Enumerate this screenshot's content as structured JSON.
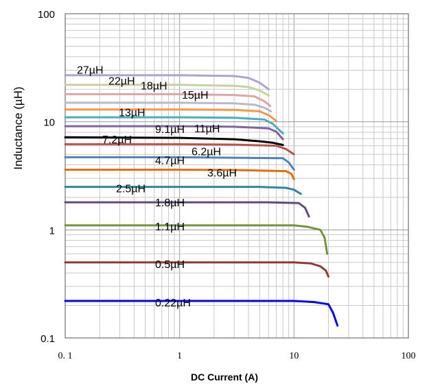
{
  "chart_data": {
    "type": "line",
    "xlabel": "DC Current (A)",
    "ylabel": "Inductance (µH)",
    "xscale": "log",
    "yscale": "log",
    "xlim": [
      0.1,
      100
    ],
    "ylim": [
      0.1,
      100
    ],
    "grid": true,
    "x_ticks": [
      {
        "value": 0.1,
        "label": "0. 1"
      },
      {
        "value": 1,
        "label": "1"
      },
      {
        "value": 10,
        "label": "10"
      },
      {
        "value": 100,
        "label": "100"
      }
    ],
    "y_ticks": [
      {
        "value": 0.1,
        "label": "0.1"
      },
      {
        "value": 1,
        "label": "1"
      },
      {
        "value": 10,
        "label": "10"
      },
      {
        "value": 100,
        "label": "100"
      }
    ],
    "series": [
      {
        "name": "27µH",
        "color": "#b0a3c8",
        "points": [
          [
            0.1,
            27
          ],
          [
            1,
            27
          ],
          [
            3,
            26.5
          ],
          [
            4,
            25.5
          ],
          [
            5,
            23
          ],
          [
            6,
            20
          ]
        ]
      },
      {
        "name": "22µH",
        "color": "#c3d59d",
        "points": [
          [
            0.1,
            22
          ],
          [
            1,
            22
          ],
          [
            3,
            21.5
          ],
          [
            4,
            21
          ],
          [
            5,
            19.5
          ],
          [
            6,
            17.5
          ]
        ]
      },
      {
        "name": "18µH",
        "color": "#dba6a3",
        "points": [
          [
            0.1,
            18
          ],
          [
            1,
            18
          ],
          [
            3,
            17.7
          ],
          [
            4.5,
            17.2
          ],
          [
            5.5,
            15.5
          ],
          [
            6.2,
            14
          ]
        ]
      },
      {
        "name": "15µH",
        "color": "#b8b8d4",
        "points": [
          [
            0.1,
            15
          ],
          [
            1,
            15
          ],
          [
            3,
            14.8
          ],
          [
            4.5,
            14.4
          ],
          [
            5.5,
            13.5
          ],
          [
            6.3,
            12.5
          ]
        ]
      },
      {
        "name": "13µH",
        "color": "#f79646",
        "points": [
          [
            0.1,
            13
          ],
          [
            1,
            13
          ],
          [
            3,
            12.9
          ],
          [
            5,
            12.5
          ],
          [
            6,
            11.5
          ],
          [
            7,
            10.2
          ]
        ]
      },
      {
        "name": "11µH",
        "color": "#4bacc6",
        "points": [
          [
            0.1,
            11
          ],
          [
            1,
            11
          ],
          [
            3,
            10.9
          ],
          [
            5.5,
            10.5
          ],
          [
            6.5,
            9.6
          ],
          [
            8,
            7.8
          ]
        ]
      },
      {
        "name": "9.1µH",
        "color": "#8064a2",
        "points": [
          [
            0.1,
            9.1
          ],
          [
            1,
            9.1
          ],
          [
            3,
            9
          ],
          [
            6,
            8.7
          ],
          [
            7,
            8.1
          ],
          [
            8,
            6.9
          ]
        ]
      },
      {
        "name": "7.2µH",
        "color": "#000000",
        "points": [
          [
            0.1,
            7.2
          ],
          [
            1,
            7.1
          ],
          [
            3,
            6.9
          ],
          [
            5,
            6.6
          ],
          [
            6.5,
            6.4
          ],
          [
            8,
            6.1
          ]
        ]
      },
      {
        "name": "6.2µH",
        "color": "#c0504d",
        "points": [
          [
            0.1,
            6.2
          ],
          [
            1,
            6.2
          ],
          [
            3,
            6.15
          ],
          [
            7,
            6
          ],
          [
            8.5,
            5.6
          ],
          [
            10,
            5
          ]
        ]
      },
      {
        "name": "4.7µH",
        "color": "#4f81bd",
        "points": [
          [
            0.1,
            4.7
          ],
          [
            1,
            4.7
          ],
          [
            3,
            4.65
          ],
          [
            8,
            4.6
          ],
          [
            9,
            4.2
          ],
          [
            10,
            3.6
          ]
        ]
      },
      {
        "name": "3.6µH",
        "color": "#e46c0a",
        "points": [
          [
            0.1,
            3.6
          ],
          [
            1,
            3.6
          ],
          [
            3,
            3.58
          ],
          [
            8.5,
            3.5
          ],
          [
            9.5,
            3.3
          ],
          [
            10,
            2.95
          ]
        ]
      },
      {
        "name": "2.5µH",
        "color": "#31859c",
        "points": [
          [
            0.1,
            2.5
          ],
          [
            1,
            2.5
          ],
          [
            5,
            2.5
          ],
          [
            8.5,
            2.45
          ],
          [
            10,
            2.35
          ],
          [
            11.5,
            2.15
          ]
        ]
      },
      {
        "name": "1.8µH",
        "color": "#604a7b",
        "points": [
          [
            0.1,
            1.8
          ],
          [
            1,
            1.8
          ],
          [
            6,
            1.8
          ],
          [
            11,
            1.77
          ],
          [
            12.5,
            1.6
          ],
          [
            13.5,
            1.33
          ]
        ]
      },
      {
        "name": "1.1µH",
        "color": "#77933c",
        "points": [
          [
            0.1,
            1.1
          ],
          [
            1,
            1.1
          ],
          [
            10,
            1.1
          ],
          [
            13,
            1.07
          ],
          [
            17,
            1.0
          ],
          [
            18.5,
            0.85
          ],
          [
            19.5,
            0.6
          ]
        ]
      },
      {
        "name": "0.5µH",
        "color": "#953735",
        "points": [
          [
            0.1,
            0.5
          ],
          [
            1,
            0.5
          ],
          [
            10,
            0.5
          ],
          [
            14,
            0.49
          ],
          [
            17,
            0.46
          ],
          [
            19,
            0.42
          ],
          [
            20,
            0.37
          ]
        ]
      },
      {
        "name": "0.22µH",
        "color": "#0000ff",
        "points": [
          [
            0.1,
            0.22
          ],
          [
            1,
            0.22
          ],
          [
            10,
            0.22
          ],
          [
            15,
            0.215
          ],
          [
            20,
            0.205
          ],
          [
            22,
            0.17
          ],
          [
            24,
            0.13
          ]
        ]
      }
    ]
  }
}
